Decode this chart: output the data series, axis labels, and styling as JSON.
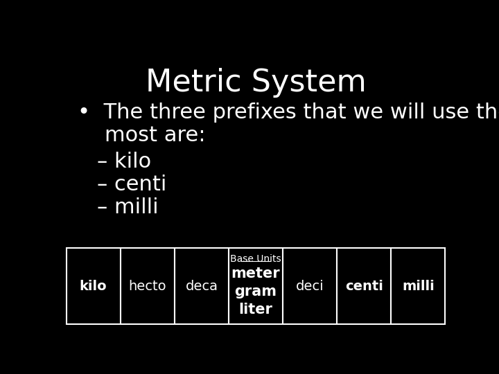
{
  "title": "Metric System",
  "title_fontsize": 32,
  "title_color": "#ffffff",
  "background_color": "#000000",
  "bullet_text_line1": "•  The three prefixes that we will use the",
  "bullet_text_line2": "    most are:",
  "sub_items": [
    "– kilo",
    "– centi",
    "– milli"
  ],
  "bullet_fontsize": 22,
  "sub_fontsize": 22,
  "table_labels": [
    "kilo",
    "hecto",
    "deca",
    "meter\ngram\nliter",
    "deci",
    "centi",
    "milli"
  ],
  "table_bold": [
    true,
    false,
    false,
    true,
    false,
    true,
    true
  ],
  "table_base_label": "Base Units",
  "table_base_index": 3,
  "table_fontsize": 14,
  "table_small_fontsize": 10,
  "cell_edge_color": "#ffffff",
  "text_color": "#ffffff"
}
